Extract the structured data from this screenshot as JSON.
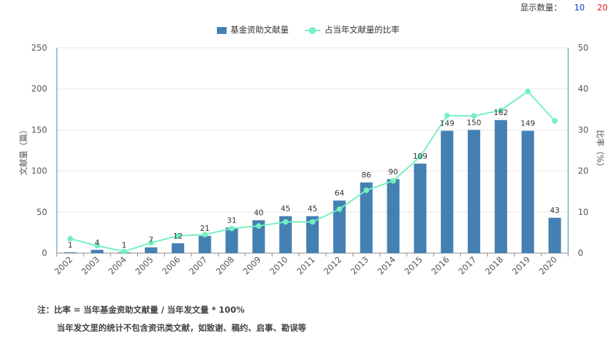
{
  "controls": {
    "display_count_label": "显示数量：",
    "options": [
      {
        "label": "10",
        "color": "#1a35d6"
      },
      {
        "label": "20",
        "color": "#e02020"
      }
    ]
  },
  "colors": {
    "bar": "#4580b3",
    "line": "#73f0c0",
    "axis_right": "#148c8c",
    "grid": "#e6e6e6"
  },
  "chart_data": {
    "type": "bar+line",
    "categories": [
      "2002",
      "2003",
      "2004",
      "2005",
      "2006",
      "2007",
      "2008",
      "2009",
      "2010",
      "2011",
      "2012",
      "2013",
      "2014",
      "2015",
      "2016",
      "2017",
      "2018",
      "2019",
      "2020"
    ],
    "series": [
      {
        "name": "基金资助文献量",
        "type": "bar",
        "axis": "left",
        "values": [
          1,
          4,
          1,
          7,
          12,
          21,
          31,
          40,
          45,
          45,
          64,
          86,
          90,
          109,
          149,
          150,
          162,
          149,
          43
        ],
        "labels": [
          "1",
          "4",
          "1",
          "7",
          "12",
          "21",
          "31",
          "40",
          "45",
          "45",
          "64",
          "86",
          "90",
          "109",
          "149",
          "150",
          "162",
          "149",
          "43"
        ]
      },
      {
        "name": "占当年文献量的比率",
        "type": "line",
        "axis": "right",
        "values": [
          3.5,
          1.8,
          0.4,
          2.5,
          4.2,
          4.5,
          6.0,
          6.6,
          7.6,
          7.6,
          10.7,
          15.3,
          17.6,
          23.5,
          33.5,
          33.4,
          34.8,
          39.4,
          32.2
        ]
      }
    ],
    "ylabel_left": "文献量（篇）",
    "ylabel_right": "比率（%）",
    "ylim_left": [
      0,
      250
    ],
    "ylim_right": [
      0,
      50
    ],
    "yticks_left": [
      "0",
      "50",
      "100",
      "150",
      "200",
      "250"
    ],
    "yticks_right": [
      "0",
      "10",
      "20",
      "30",
      "40",
      "50"
    ],
    "grid": true,
    "legend": "top-center"
  },
  "notes": {
    "line1": "注：比率 = 当年基金资助文献量 / 当年发文量 * 100%",
    "line2": "当年发文里的统计不包含资讯类文献，如致谢、稿约、启事、勘误等"
  }
}
